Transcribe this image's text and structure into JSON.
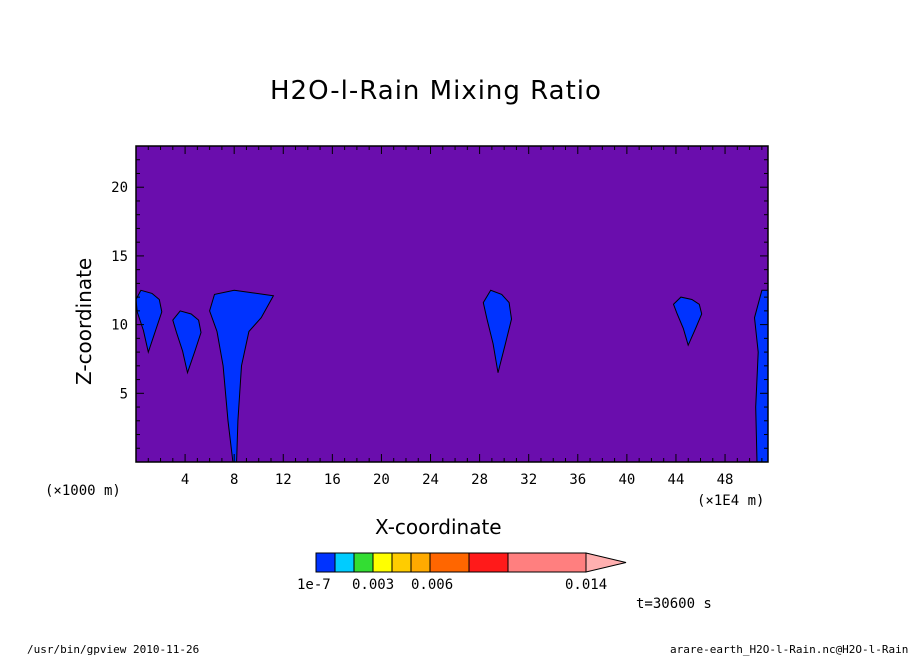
{
  "chart_data": {
    "type": "heatmap",
    "title": "H2O-l-Rain Mixing Ratio",
    "xlabel": "X-coordinate",
    "ylabel": "Z-coordinate",
    "x_unit_left": "(×1000 m)",
    "x_unit_right": "(×1E4 m)",
    "xlim": [
      0,
      51.5
    ],
    "ylim": [
      0,
      23
    ],
    "x_ticks": [
      "4",
      "8",
      "12",
      "16",
      "20",
      "24",
      "28",
      "32",
      "36",
      "40",
      "44",
      "48"
    ],
    "y_ticks": [
      "5",
      "10",
      "15",
      "20"
    ],
    "background_level": "below 1e-7",
    "background_color": "#6a0dad",
    "rain_cells": [
      {
        "x_center": 1.0,
        "z_range": [
          8,
          12.5
        ],
        "level": "1e-7 to 0.003"
      },
      {
        "x_center": 4.2,
        "z_range": [
          6.5,
          11
        ],
        "level": "1e-7 to 0.003"
      },
      {
        "x_center": 8.0,
        "z_range": [
          0,
          12.5
        ],
        "level": "1e-7 to 0.003"
      },
      {
        "x_center": 29.5,
        "z_range": [
          6.5,
          12.5
        ],
        "level": "1e-7 to 0.003"
      },
      {
        "x_center": 45.0,
        "z_range": [
          8.5,
          12
        ],
        "level": "1e-7 to 0.003"
      },
      {
        "x_center": 51.0,
        "z_range": [
          0,
          12.5
        ],
        "level": "1e-7 to 0.003"
      }
    ],
    "colorbar": {
      "colors": [
        "#0033ff",
        "#00ccff",
        "#33dd33",
        "#ffff00",
        "#ffcc00",
        "#ffaa00",
        "#ff6600",
        "#ff1a1a",
        "#ff7f7f",
        "#ffb0b0"
      ],
      "labels": [
        "1e-7",
        "0.003",
        "0.006",
        "0.014"
      ]
    },
    "time_label": "t=30600 s"
  },
  "footer": {
    "left": "/usr/bin/gpview  2010-11-26",
    "right": "arare-earth_H2O-l-Rain.nc@H2O-l-Rain"
  }
}
